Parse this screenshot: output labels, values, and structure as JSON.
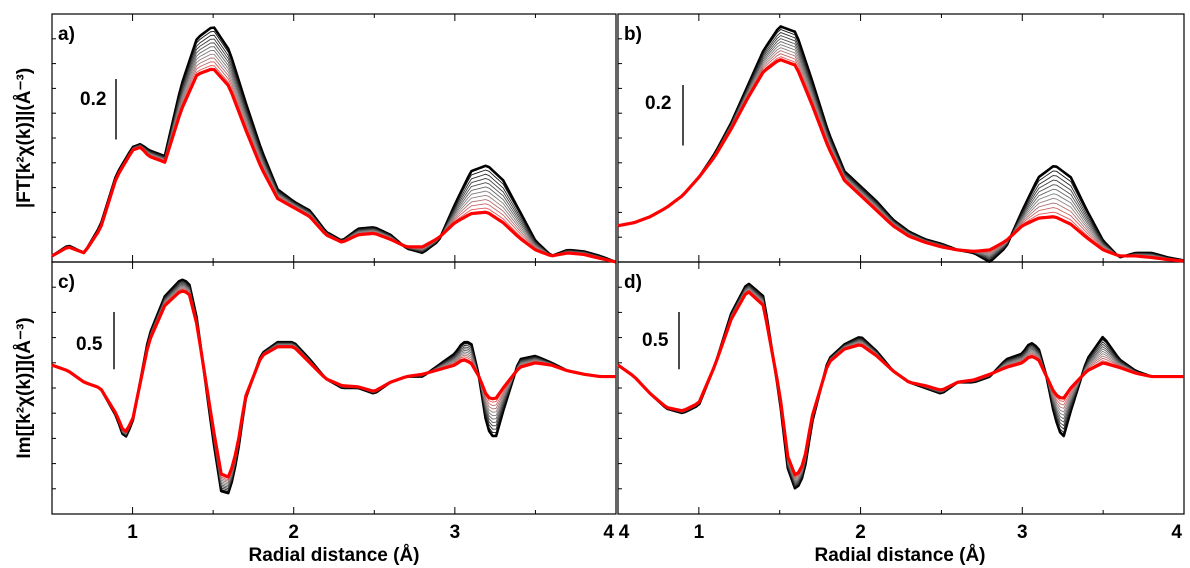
{
  "chart_data": [
    {
      "panel": "a)",
      "type": "line",
      "ylabel": "|FT[k²χ(k)]|(Å⁻³)",
      "xlim": [
        0.5,
        4.0
      ],
      "ylim": [
        0.0,
        0.82
      ],
      "scale_bar": {
        "label": "0.2",
        "value": 0.2
      },
      "first_curve": {
        "x": [
          0.5,
          0.6,
          0.7,
          0.8,
          0.9,
          1.0,
          1.05,
          1.1,
          1.2,
          1.3,
          1.4,
          1.5,
          1.6,
          1.7,
          1.8,
          1.9,
          2.0,
          2.1,
          2.2,
          2.3,
          2.4,
          2.5,
          2.6,
          2.7,
          2.8,
          2.9,
          3.0,
          3.1,
          3.2,
          3.3,
          3.4,
          3.5,
          3.6,
          3.7,
          3.8,
          3.9,
          4.0
        ],
        "y": [
          0.02,
          0.055,
          0.03,
          0.12,
          0.29,
          0.38,
          0.39,
          0.37,
          0.35,
          0.58,
          0.74,
          0.78,
          0.7,
          0.53,
          0.37,
          0.24,
          0.2,
          0.17,
          0.1,
          0.07,
          0.11,
          0.115,
          0.09,
          0.045,
          0.03,
          0.07,
          0.19,
          0.3,
          0.32,
          0.27,
          0.17,
          0.07,
          0.02,
          0.04,
          0.035,
          0.02,
          0.0
        ]
      },
      "last_curve": {
        "x": [
          0.5,
          0.6,
          0.7,
          0.8,
          0.9,
          1.0,
          1.05,
          1.1,
          1.2,
          1.3,
          1.4,
          1.5,
          1.6,
          1.7,
          1.8,
          1.9,
          2.0,
          2.1,
          2.2,
          2.3,
          2.4,
          2.5,
          2.6,
          2.7,
          2.8,
          2.9,
          3.0,
          3.1,
          3.2,
          3.3,
          3.4,
          3.5,
          3.6,
          3.7,
          3.8,
          3.9,
          4.0
        ],
        "y": [
          0.02,
          0.05,
          0.03,
          0.11,
          0.28,
          0.37,
          0.38,
          0.35,
          0.33,
          0.5,
          0.62,
          0.64,
          0.58,
          0.44,
          0.31,
          0.21,
          0.18,
          0.15,
          0.09,
          0.065,
          0.09,
          0.095,
          0.075,
          0.05,
          0.05,
          0.08,
          0.13,
          0.16,
          0.165,
          0.13,
          0.08,
          0.04,
          0.02,
          0.03,
          0.025,
          0.012,
          0.0
        ]
      },
      "n_curves": 12
    },
    {
      "panel": "b)",
      "type": "line",
      "xlim": [
        0.5,
        4.0
      ],
      "ylim": [
        0.0,
        0.82
      ],
      "scale_bar": {
        "label": "0.2",
        "value": 0.2
      },
      "first_curve": {
        "x": [
          0.5,
          0.6,
          0.7,
          0.8,
          0.9,
          1.0,
          1.1,
          1.2,
          1.3,
          1.4,
          1.5,
          1.6,
          1.7,
          1.8,
          1.9,
          2.0,
          2.1,
          2.2,
          2.3,
          2.4,
          2.5,
          2.6,
          2.7,
          2.8,
          2.9,
          3.0,
          3.1,
          3.2,
          3.3,
          3.4,
          3.5,
          3.6,
          3.7,
          3.8,
          3.9,
          4.0
        ],
        "y": [
          0.12,
          0.13,
          0.15,
          0.18,
          0.22,
          0.28,
          0.36,
          0.46,
          0.58,
          0.7,
          0.78,
          0.76,
          0.6,
          0.43,
          0.3,
          0.25,
          0.2,
          0.14,
          0.1,
          0.075,
          0.06,
          0.04,
          0.03,
          0.0,
          0.05,
          0.17,
          0.28,
          0.32,
          0.28,
          0.17,
          0.07,
          0.015,
          0.03,
          0.03,
          0.015,
          0.005
        ]
      },
      "last_curve": {
        "x": [
          0.5,
          0.6,
          0.7,
          0.8,
          0.9,
          1.0,
          1.1,
          1.2,
          1.3,
          1.4,
          1.5,
          1.6,
          1.7,
          1.8,
          1.9,
          2.0,
          2.1,
          2.2,
          2.3,
          2.4,
          2.5,
          2.6,
          2.7,
          2.8,
          2.9,
          3.0,
          3.1,
          3.2,
          3.3,
          3.4,
          3.5,
          3.6,
          3.7,
          3.8,
          3.9,
          4.0
        ],
        "y": [
          0.12,
          0.13,
          0.15,
          0.18,
          0.22,
          0.28,
          0.35,
          0.44,
          0.54,
          0.63,
          0.67,
          0.65,
          0.52,
          0.38,
          0.27,
          0.22,
          0.17,
          0.12,
          0.085,
          0.065,
          0.05,
          0.04,
          0.035,
          0.04,
          0.07,
          0.12,
          0.145,
          0.15,
          0.125,
          0.08,
          0.04,
          0.02,
          0.02,
          0.015,
          0.008,
          0.003
        ]
      },
      "n_curves": 12
    },
    {
      "panel": "c)",
      "type": "line",
      "ylabel": "Im[[k²χ(k)]](Å⁻³)",
      "xlabel": "Radial distance (Å)",
      "xlim": [
        0.5,
        4.0
      ],
      "xticks": [
        1,
        2,
        3,
        4
      ],
      "ylim": [
        -1.2,
        1.0
      ],
      "scale_bar": {
        "label": "0.5",
        "value": 0.5
      },
      "first_curve": {
        "x": [
          0.5,
          0.6,
          0.7,
          0.8,
          0.9,
          0.95,
          1.0,
          1.1,
          1.2,
          1.3,
          1.35,
          1.4,
          1.5,
          1.55,
          1.6,
          1.65,
          1.7,
          1.8,
          1.9,
          2.0,
          2.1,
          2.2,
          2.3,
          2.4,
          2.5,
          2.6,
          2.7,
          2.8,
          2.9,
          3.0,
          3.05,
          3.1,
          3.15,
          3.2,
          3.25,
          3.3,
          3.4,
          3.5,
          3.6,
          3.7,
          3.8,
          3.9,
          4.0
        ],
        "y": [
          0.1,
          0.05,
          -0.05,
          -0.1,
          -0.35,
          -0.55,
          -0.4,
          0.35,
          0.7,
          0.85,
          0.82,
          0.5,
          -0.55,
          -1.0,
          -1.02,
          -0.7,
          -0.2,
          0.2,
          0.3,
          0.3,
          0.15,
          -0.02,
          -0.1,
          -0.1,
          -0.15,
          -0.05,
          0.0,
          0.0,
          0.1,
          0.2,
          0.3,
          0.3,
          0.0,
          -0.45,
          -0.55,
          -0.3,
          0.15,
          0.18,
          0.12,
          0.05,
          0.02,
          0.0,
          0.0
        ]
      },
      "last_curve": {
        "x": [
          0.5,
          0.6,
          0.7,
          0.8,
          0.9,
          0.95,
          1.0,
          1.1,
          1.2,
          1.3,
          1.35,
          1.4,
          1.5,
          1.55,
          1.6,
          1.65,
          1.7,
          1.8,
          1.9,
          2.0,
          2.1,
          2.2,
          2.3,
          2.4,
          2.5,
          2.6,
          2.7,
          2.8,
          2.9,
          3.0,
          3.05,
          3.1,
          3.15,
          3.2,
          3.25,
          3.3,
          3.4,
          3.5,
          3.6,
          3.7,
          3.8,
          3.9,
          4.0
        ],
        "y": [
          0.1,
          0.05,
          -0.05,
          -0.1,
          -0.33,
          -0.5,
          -0.38,
          0.3,
          0.62,
          0.75,
          0.73,
          0.45,
          -0.45,
          -0.85,
          -0.88,
          -0.62,
          -0.18,
          0.18,
          0.26,
          0.26,
          0.12,
          -0.02,
          -0.08,
          -0.09,
          -0.13,
          -0.05,
          0.0,
          0.02,
          0.06,
          0.1,
          0.15,
          0.12,
          0.0,
          -0.18,
          -0.2,
          -0.1,
          0.08,
          0.12,
          0.1,
          0.05,
          0.02,
          0.0,
          0.0
        ]
      },
      "n_curves": 12
    },
    {
      "panel": "d)",
      "type": "line",
      "xlabel": "Radial distance (Å)",
      "xlim": [
        0.5,
        4.0
      ],
      "xticks": [
        1,
        2,
        3,
        4
      ],
      "ylim": [
        -1.2,
        1.0
      ],
      "scale_bar": {
        "label": "0.5",
        "value": 0.5
      },
      "first_curve": {
        "x": [
          0.5,
          0.6,
          0.7,
          0.8,
          0.9,
          1.0,
          1.1,
          1.2,
          1.3,
          1.4,
          1.5,
          1.55,
          1.6,
          1.65,
          1.7,
          1.8,
          1.9,
          2.0,
          2.1,
          2.2,
          2.3,
          2.4,
          2.5,
          2.6,
          2.7,
          2.8,
          2.9,
          3.0,
          3.05,
          3.1,
          3.15,
          3.2,
          3.25,
          3.3,
          3.4,
          3.5,
          3.6,
          3.7,
          3.8,
          3.9,
          4.0
        ],
        "y": [
          0.1,
          0.0,
          -0.15,
          -0.28,
          -0.32,
          -0.25,
          0.1,
          0.55,
          0.82,
          0.7,
          -0.2,
          -0.8,
          -1.0,
          -0.85,
          -0.4,
          0.15,
          0.28,
          0.35,
          0.22,
          0.05,
          -0.05,
          -0.1,
          -0.15,
          -0.05,
          -0.05,
          0.0,
          0.15,
          0.2,
          0.3,
          0.25,
          0.0,
          -0.35,
          -0.55,
          -0.3,
          0.15,
          0.35,
          0.15,
          0.05,
          0.0,
          0.0,
          0.0
        ]
      },
      "last_curve": {
        "x": [
          0.5,
          0.6,
          0.7,
          0.8,
          0.9,
          1.0,
          1.1,
          1.2,
          1.3,
          1.4,
          1.5,
          1.55,
          1.6,
          1.65,
          1.7,
          1.8,
          1.9,
          2.0,
          2.1,
          2.2,
          2.3,
          2.4,
          2.5,
          2.6,
          2.7,
          2.8,
          2.9,
          3.0,
          3.05,
          3.1,
          3.15,
          3.2,
          3.25,
          3.3,
          3.4,
          3.5,
          3.6,
          3.7,
          3.8,
          3.9,
          4.0
        ],
        "y": [
          0.1,
          0.0,
          -0.15,
          -0.27,
          -0.3,
          -0.23,
          0.1,
          0.5,
          0.75,
          0.62,
          -0.15,
          -0.7,
          -0.88,
          -0.75,
          -0.35,
          0.12,
          0.24,
          0.28,
          0.18,
          0.05,
          -0.05,
          -0.08,
          -0.12,
          -0.05,
          -0.03,
          0.02,
          0.08,
          0.12,
          0.18,
          0.15,
          0.0,
          -0.15,
          -0.2,
          -0.1,
          0.05,
          0.12,
          0.08,
          0.03,
          0.0,
          0.0,
          0.0
        ]
      },
      "n_curves": 12
    }
  ],
  "colors": {
    "start": "#000000",
    "end": "#ff0000"
  }
}
